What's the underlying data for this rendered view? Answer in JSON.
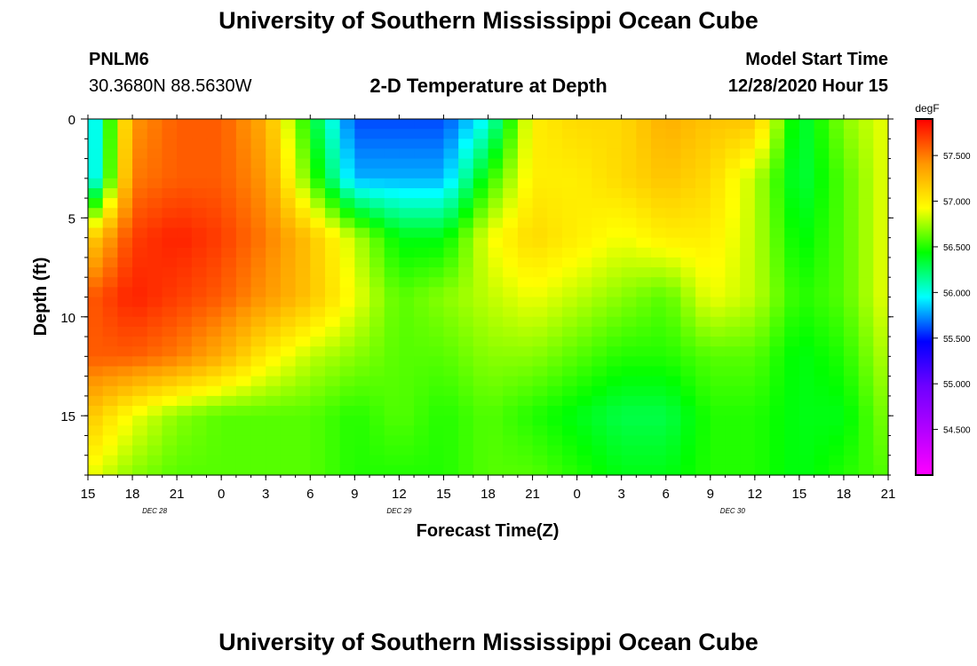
{
  "header": {
    "top_title": "University of Southern Mississippi Ocean Cube",
    "bottom_title": "University of Southern Mississippi Ocean Cube",
    "station_id": "PNLM6",
    "station_coords": "30.3680N 88.5630W",
    "model_label": "Model Start Time",
    "model_time": "12/28/2020 Hour 15"
  },
  "chart_data": {
    "type": "heatmap",
    "title": "2-D Temperature at Depth",
    "xlabel": "Forecast Time(Z)",
    "ylabel": "Depth (ft)",
    "x_tick_labels": [
      "15",
      "18",
      "21",
      "0",
      "3",
      "6",
      "9",
      "12",
      "15",
      "18",
      "21",
      "0",
      "3",
      "6",
      "9",
      "12",
      "15",
      "18",
      "21"
    ],
    "date_labels": [
      {
        "label": "DEC 28",
        "hour_index": 1.5
      },
      {
        "label": "DEC 29",
        "hour_index": 7
      },
      {
        "label": "DEC 30",
        "hour_index": 14.5
      }
    ],
    "y_ticks": [
      0,
      5,
      10,
      15
    ],
    "ylim": [
      0,
      18
    ],
    "x_range_hours": [
      0,
      54
    ],
    "colorbar": {
      "unit": "degF",
      "min": 54.0,
      "max": 57.9,
      "tick_values": [
        54.5,
        55.0,
        55.5,
        56.0,
        56.5,
        57.0,
        57.5
      ],
      "tick_labels": [
        "54.500",
        "55.000",
        "55.500",
        "56.000",
        "56.500",
        "57.000",
        "57.500"
      ],
      "colors": [
        "#ff00ff",
        "#b400ff",
        "#6e00ff",
        "#0000ff",
        "#00ffff",
        "#00ff00",
        "#ffff00",
        "#ff9600",
        "#ff0000"
      ]
    },
    "grid_depths_ft": [
      0,
      3,
      6,
      9,
      12,
      15,
      18
    ],
    "grid_times_hours": [
      0,
      3,
      6,
      9,
      12,
      15,
      18,
      21,
      24,
      27,
      30,
      33,
      36,
      39,
      42,
      45,
      48,
      51,
      54
    ],
    "temperature_grid_degF": [
      [
        55.7,
        57.4,
        57.6,
        57.6,
        57.3,
        56.4,
        55.6,
        55.6,
        55.6,
        56.0,
        57.0,
        57.1,
        57.1,
        57.3,
        57.2,
        57.2,
        56.3,
        56.7,
        56.9
      ],
      [
        55.7,
        57.5,
        57.6,
        57.6,
        57.4,
        56.6,
        55.8,
        55.8,
        55.8,
        56.5,
        57.0,
        57.0,
        57.1,
        57.2,
        57.1,
        56.8,
        56.3,
        56.6,
        56.9
      ],
      [
        57.1,
        57.7,
        57.8,
        57.7,
        57.5,
        57.2,
        56.8,
        56.4,
        56.4,
        56.9,
        57.1,
        57.0,
        56.9,
        57.0,
        57.0,
        56.8,
        56.4,
        56.6,
        56.9
      ],
      [
        57.6,
        57.8,
        57.7,
        57.6,
        57.4,
        57.2,
        56.9,
        56.6,
        56.7,
        56.8,
        56.9,
        56.8,
        56.7,
        56.6,
        56.9,
        56.8,
        56.5,
        56.6,
        56.9
      ],
      [
        57.6,
        57.6,
        57.5,
        57.3,
        57.0,
        56.8,
        56.7,
        56.6,
        56.6,
        56.7,
        56.7,
        56.6,
        56.5,
        56.5,
        56.6,
        56.6,
        56.4,
        56.5,
        56.8
      ],
      [
        57.2,
        56.9,
        56.7,
        56.6,
        56.6,
        56.6,
        56.5,
        56.6,
        56.5,
        56.6,
        56.5,
        56.4,
        56.3,
        56.3,
        56.5,
        56.5,
        56.4,
        56.4,
        56.7
      ],
      [
        56.9,
        56.7,
        56.6,
        56.6,
        56.6,
        56.6,
        56.5,
        56.5,
        56.5,
        56.6,
        56.6,
        56.5,
        56.4,
        56.4,
        56.5,
        56.5,
        56.4,
        56.5,
        56.6
      ]
    ]
  }
}
